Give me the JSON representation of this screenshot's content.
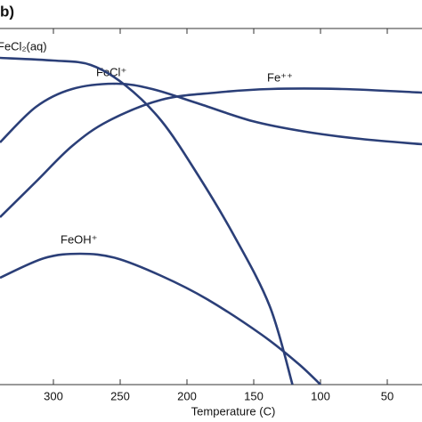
{
  "panel_label": "b)",
  "chart_data": {
    "type": "line",
    "x_label": "Temperature (C)",
    "xlim": [
      340,
      24
    ],
    "xticks": [
      300,
      250,
      200,
      150,
      100,
      50
    ],
    "ylim": [
      0,
      100
    ],
    "series": [
      {
        "name": "FeCl₂(aq)",
        "color": "#2b3f78",
        "x": [
          340,
          300,
          272,
          246,
          219,
          192,
          165,
          138,
          121
        ],
        "values": [
          91.75,
          91,
          89.75,
          84,
          74,
          59,
          42,
          22,
          0
        ]
      },
      {
        "name": "FeCl⁺",
        "color": "#2b3f78",
        "x": [
          340,
          313,
          286,
          253,
          226,
          192,
          151,
          111,
          70,
          24
        ],
        "values": [
          68,
          78,
          83,
          84.5,
          83,
          79,
          74,
          71,
          69,
          67.5
        ]
      },
      {
        "name": "Fe⁺⁺",
        "color": "#2b3f78",
        "x": [
          340,
          313,
          286,
          259,
          219,
          178,
          138,
          84,
          24
        ],
        "values": [
          47,
          57,
          67,
          74,
          80,
          82,
          83,
          83,
          82
        ]
      },
      {
        "name": "FeOH⁺",
        "color": "#2b3f78",
        "x": [
          340,
          307,
          280,
          253,
          219,
          185,
          144,
          117,
          100
        ],
        "values": [
          30,
          35.5,
          36.75,
          35.5,
          30.5,
          24,
          14,
          6,
          0
        ]
      }
    ]
  }
}
